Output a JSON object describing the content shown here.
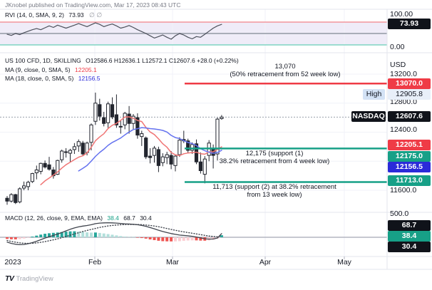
{
  "attribution": "JKnobel published on TradingView.com, Mar 17, 2023 08:43 UTC",
  "watermark": {
    "logo": "TV",
    "text": "TradingView"
  },
  "rvi": {
    "label": "RVI (14, 0, SMA, 9, 2)",
    "value": "73.93",
    "ghost_icons": "∅ ∅",
    "axis_top": "100.00",
    "axis_bottom": "0.00",
    "badge": "73.93"
  },
  "symbol": {
    "title": "US 100 CFD, 1D, SKILLING",
    "ohlc": "O12586.6  H12636.1  L12572.1  C12607.6  +28.0 (+0.22%)"
  },
  "ma9": {
    "label": "MA (9, close, 0, SMA, 5)",
    "value": "12205.1"
  },
  "ma18": {
    "label": "MA (18, close, 0, SMA, 5)",
    "value": "12156.5"
  },
  "macd": {
    "label": "MACD (12, 26, close, 9, EMA, EMA)",
    "hist_value": "38.4",
    "macd_value": "68.7",
    "signal_value": "30.4",
    "axis_tick": "500.0",
    "badge_macd": "68.7",
    "badge_hist": "38.4",
    "badge_signal": "30.4"
  },
  "annotations": {
    "resistance": {
      "line1": "13,070",
      "line2": "(50% retracement from 52 week low)"
    },
    "support1": {
      "line1": "12,175 (support (1)",
      "line2": "38.2% retracement from 4 week low)"
    },
    "support2": {
      "line1": "11,713 (support (2) at 38.2% retracement",
      "line2": "from 13 week low)"
    }
  },
  "price_axis": {
    "currency": "USD",
    "tick_13200": "13200.0",
    "tick_12800": "12800.0",
    "tick_12400": "12400.0",
    "tick_11600": "11600.0",
    "badge_resistance": "13070.0",
    "high_label": "High",
    "high_value": "12905.8",
    "symbol_label": "NASDAQ",
    "last_value": "12607.6",
    "badge_ma9": "12205.1",
    "badge_support1": "12175.0",
    "badge_ma18": "12156.5",
    "badge_support2": "11713.0"
  },
  "time_axis": {
    "labels": [
      "2023",
      "Feb",
      "Mar",
      "Apr",
      "May"
    ]
  },
  "colors": {
    "red": "#ef3b46",
    "teal": "#17a087",
    "blue": "#2b2bd9",
    "badge_black": "#10131a",
    "high_label_bg": "#d3e2f5",
    "high_value_bg": "#e8eff9",
    "grid": "#f0f2f8",
    "separator": "#e3e5ec",
    "rvi_band": "#efecf8",
    "band_red": "#f2959c",
    "band_teal": "#7fd4c2",
    "rvi_mid": "#a9adb8",
    "rvi_line": "#4d515c",
    "ma9_line": "#f07575",
    "ma18_line": "#6472ef",
    "hist_pos": "#26a69a",
    "hist_pos_weak": "#b2dfdb",
    "hist_neg": "#ef5350",
    "hist_neg_weak": "#fbcdd2",
    "candle_up": "#ffffff",
    "candle_down": "#23262f",
    "candle_border": "#23262f",
    "dashed_line": "#9aa0ab",
    "macd_line": "#40444d",
    "zero_line": "#b3b6c0"
  },
  "chart_data": {
    "type": "candlestick",
    "title": "US 100 CFD, 1D, SKILLING",
    "x_months": [
      "2023",
      "Feb",
      "Mar",
      "Apr",
      "May"
    ],
    "price_axis_anchor": {
      "price_top": 13200,
      "price_bottom": 11600
    },
    "levels": {
      "resistance": 13070,
      "support1": 12175,
      "support2": 11713,
      "last_price": 12607.6,
      "high_marker": 12905.8
    },
    "candles_ohlc": [
      [
        11490,
        11520,
        11400,
        11450
      ],
      [
        11450,
        11560,
        11430,
        11540
      ],
      [
        11540,
        11550,
        11410,
        11430
      ],
      [
        11440,
        11640,
        11420,
        11620
      ],
      [
        11630,
        11720,
        11600,
        11660
      ],
      [
        11650,
        11730,
        11600,
        11710
      ],
      [
        11720,
        11840,
        11700,
        11830
      ],
      [
        11840,
        11940,
        11750,
        11880
      ],
      [
        11860,
        11980,
        11820,
        11970
      ],
      [
        11970,
        12010,
        11900,
        11920
      ],
      [
        11950,
        12060,
        11870,
        11890
      ],
      [
        11880,
        11920,
        11760,
        11800
      ],
      [
        11820,
        12020,
        11810,
        12010
      ],
      [
        12020,
        12160,
        11980,
        12140
      ],
      [
        12130,
        12180,
        12050,
        12120
      ],
      [
        12110,
        12170,
        11990,
        12150
      ],
      [
        12160,
        12250,
        12100,
        12200
      ],
      [
        12210,
        12300,
        12130,
        12270
      ],
      [
        12250,
        12280,
        12070,
        12100
      ],
      [
        12120,
        12270,
        12080,
        12250
      ],
      [
        12260,
        12520,
        12150,
        12500
      ],
      [
        12550,
        12945,
        12500,
        12800
      ],
      [
        12780,
        12860,
        12560,
        12620
      ],
      [
        12600,
        12680,
        12480,
        12520
      ],
      [
        12530,
        12820,
        12460,
        12790
      ],
      [
        12780,
        12880,
        12580,
        12610
      ],
      [
        12640,
        12920,
        12460,
        12500
      ],
      [
        12480,
        12560,
        12380,
        12480
      ],
      [
        12500,
        12680,
        12440,
        12660
      ],
      [
        12650,
        12760,
        12380,
        12520
      ],
      [
        12520,
        12650,
        12440,
        12620
      ],
      [
        12600,
        12660,
        12310,
        12360
      ],
      [
        12340,
        12420,
        12210,
        12380
      ],
      [
        12320,
        12340,
        12030,
        12060
      ],
      [
        12070,
        12180,
        11970,
        12050
      ],
      [
        12080,
        12210,
        11980,
        12180
      ],
      [
        12160,
        12200,
        11850,
        11940
      ],
      [
        11980,
        12110,
        11930,
        12060
      ],
      [
        12050,
        12130,
        11960,
        12090
      ],
      [
        12080,
        12140,
        11890,
        11960
      ],
      [
        11940,
        12090,
        11860,
        12070
      ],
      [
        12090,
        12330,
        12060,
        12290
      ],
      [
        12300,
        12420,
        12250,
        12280
      ],
      [
        12280,
        12310,
        12110,
        12150
      ],
      [
        12150,
        12260,
        12100,
        12230
      ],
      [
        12240,
        12300,
        11960,
        11990
      ],
      [
        11990,
        12120,
        11830,
        11870
      ],
      [
        11820,
        12070,
        11695,
        12030
      ],
      [
        12080,
        12290,
        12000,
        12250
      ],
      [
        12180,
        12230,
        11900,
        12080
      ],
      [
        12100,
        12600,
        12010,
        12580
      ],
      [
        12586.6,
        12636.1,
        12572.1,
        12607.6
      ]
    ],
    "moving_averages": {
      "sma_fast_period": 9,
      "sma_slow_period": 18,
      "sma_fast_last": 12205.1,
      "sma_slow_last": 12156.5
    },
    "rvi_series": {
      "range": [
        0,
        100
      ],
      "upper_band": 80,
      "lower_band": 20,
      "midline": 50,
      "last": 73.93,
      "values": [
        48,
        45,
        50,
        47,
        52,
        56,
        60,
        63,
        60,
        65,
        70,
        66,
        72,
        68,
        64,
        68,
        72,
        76,
        72,
        68,
        73,
        78,
        74,
        68,
        72,
        75,
        70,
        64,
        67,
        71,
        66,
        60,
        55,
        50,
        44,
        38,
        42,
        46,
        40,
        35,
        44,
        50,
        46,
        40,
        36,
        42,
        40,
        48,
        56,
        64,
        70,
        73.93
      ]
    },
    "macd_series": {
      "axis_tick": 500,
      "last_macd": 68.7,
      "last_signal": 30.4,
      "last_hist": 38.4,
      "macd": [
        -90,
        -115,
        -130,
        -138,
        -135,
        -120,
        -100,
        -75,
        -45,
        -15,
        10,
        35,
        60,
        90,
        120,
        150,
        175,
        195,
        210,
        220,
        235,
        255,
        265,
        270,
        272,
        270,
        265,
        258,
        252,
        248,
        243,
        235,
        222,
        205,
        182,
        158,
        132,
        108,
        88,
        70,
        55,
        42,
        35,
        28,
        18,
        5,
        -12,
        -28,
        -35,
        -32,
        -15,
        68.7
      ],
      "signal": [
        -60,
        -78,
        -92,
        -104,
        -112,
        -115,
        -113,
        -106,
        -95,
        -81,
        -65,
        -48,
        -29,
        -8,
        15,
        39,
        63,
        86,
        108,
        128,
        147,
        166,
        184,
        199,
        212,
        222,
        230,
        235,
        238,
        240,
        240,
        239,
        236,
        230,
        222,
        211,
        197,
        181,
        164,
        147,
        131,
        115,
        101,
        88,
        76,
        63,
        50,
        36,
        24,
        14,
        9,
        30.4
      ]
    }
  }
}
